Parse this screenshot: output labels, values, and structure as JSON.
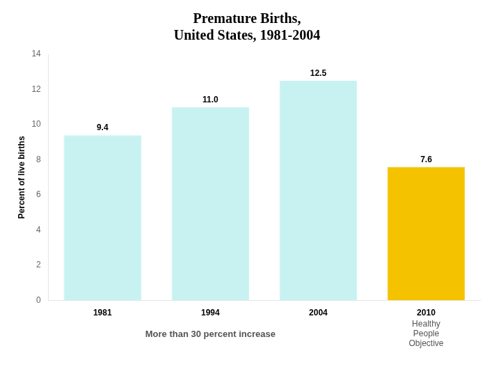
{
  "chart_data": {
    "type": "bar",
    "title": [
      "Premature Births,",
      "United States, 1981-2004"
    ],
    "ylabel": "Percent of live births",
    "categories": [
      "1981",
      "1994",
      "2004",
      "2010"
    ],
    "values": [
      9.4,
      11.0,
      12.5,
      7.6
    ],
    "value_labels": [
      "9.4",
      "11.0",
      "12.5",
      "7.6"
    ],
    "colors": [
      "#c8f2f2",
      "#c8f2f2",
      "#c8f2f2",
      "#f5c200"
    ],
    "ylim": [
      0,
      14
    ],
    "yticks": [
      0,
      2,
      4,
      6,
      8,
      10,
      12,
      14
    ],
    "grid": false,
    "data_labels": true,
    "annotations": [
      "More than 30 percent increase",
      "Healthy\nPeople\nObjective"
    ]
  }
}
